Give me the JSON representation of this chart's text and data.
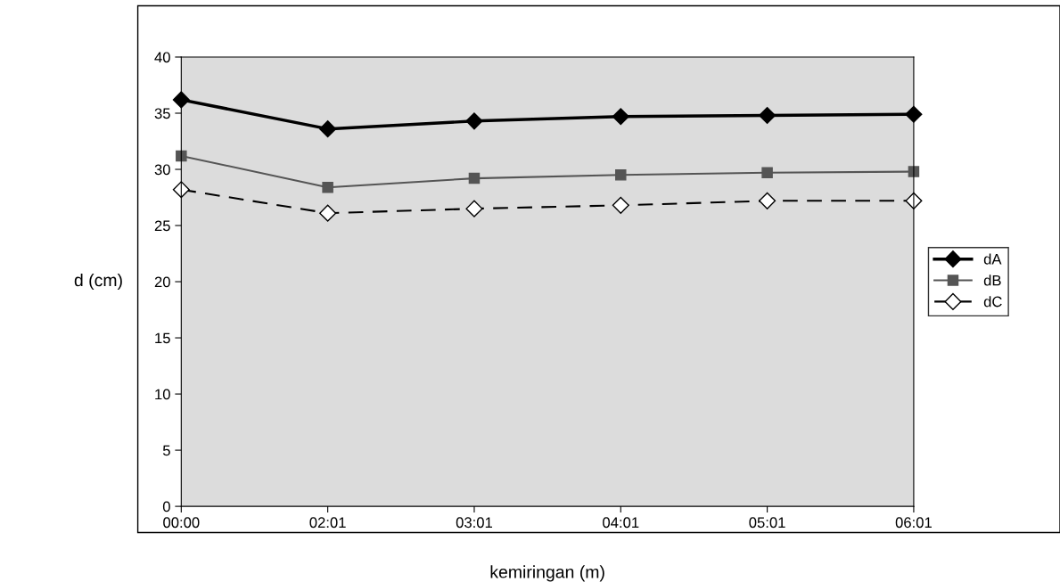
{
  "chart_data": {
    "type": "line",
    "xlabel": "kemiringan (m)",
    "ylabel": "d (cm)",
    "categories": [
      "00:00",
      "02:01",
      "03:01",
      "04:01",
      "05:01",
      "06:01"
    ],
    "series": [
      {
        "name": "dA",
        "color": "#000000",
        "marker": "diamond",
        "line_style": "solid",
        "values": [
          36.2,
          33.6,
          34.3,
          34.7,
          34.8,
          34.9
        ]
      },
      {
        "name": "dB",
        "color": "#555555",
        "marker": "square",
        "line_style": "solid",
        "values": [
          31.2,
          28.4,
          29.2,
          29.5,
          29.7,
          29.8
        ]
      },
      {
        "name": "dC",
        "color": "#000000",
        "marker": "diamond",
        "line_style": "dashed",
        "values": [
          28.2,
          26.1,
          26.5,
          26.8,
          27.2,
          27.2
        ]
      }
    ],
    "ylim": [
      0,
      40
    ],
    "yticks": [
      0,
      5,
      10,
      15,
      20,
      25,
      30,
      35,
      40
    ],
    "grid": false,
    "legend": "right"
  }
}
